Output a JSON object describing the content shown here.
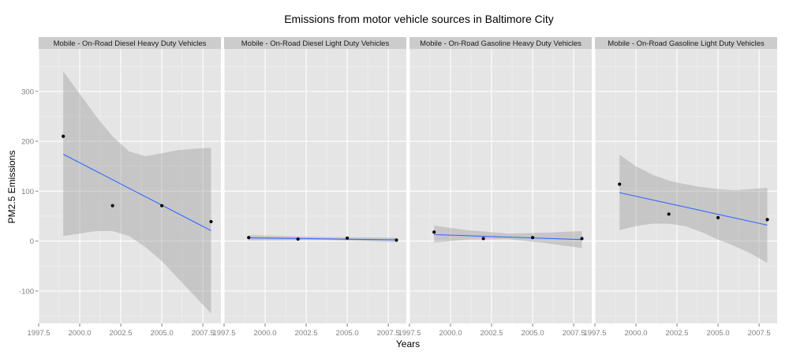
{
  "chart_data": {
    "type": "scatter",
    "title": "Emissions from motor vehicle sources in Baltimore City",
    "xlabel": "Years",
    "ylabel": "PM2.5 Emissions",
    "xlim": [
      1997.5,
      2008.6
    ],
    "ylim": [
      -165,
      385
    ],
    "x_ticks": [
      1997.5,
      2000.0,
      2002.5,
      2005.0,
      2007.5
    ],
    "x_tick_labels": [
      "1997.5",
      "2000.0",
      "2002.5",
      "2005.0",
      "2007.5"
    ],
    "y_ticks": [
      -100,
      0,
      100,
      200,
      300
    ],
    "y_tick_labels": [
      "-100",
      "0",
      "100",
      "200",
      "300"
    ],
    "grid": true,
    "facets": [
      {
        "name": "Mobile - On-Road Diesel Heavy Duty Vehicles",
        "points": [
          {
            "x": 1999,
            "y": 210
          },
          {
            "x": 2002,
            "y": 71
          },
          {
            "x": 2005,
            "y": 71
          },
          {
            "x": 2008,
            "y": 39
          }
        ],
        "fit": {
          "x": [
            1999,
            2008
          ],
          "y": [
            174,
            21
          ]
        },
        "band": {
          "x": [
            1999,
            2000,
            2001,
            2002,
            2003,
            2004,
            2005,
            2006,
            2007,
            2008
          ],
          "upper": [
            340,
            295,
            250,
            210,
            180,
            170,
            176,
            182,
            185,
            187
          ],
          "lower": [
            10,
            15,
            20,
            20,
            10,
            -12,
            -40,
            -75,
            -110,
            -145
          ]
        }
      },
      {
        "name": "Mobile - On-Road Diesel Light Duty Vehicles",
        "points": [
          {
            "x": 1999,
            "y": 7
          },
          {
            "x": 2002,
            "y": 4
          },
          {
            "x": 2005,
            "y": 6
          },
          {
            "x": 2008,
            "y": 2
          }
        ],
        "fit": {
          "x": [
            1999,
            2008
          ],
          "y": [
            6.5,
            2.5
          ]
        },
        "band": {
          "x": [
            1999,
            2003.5,
            2008
          ],
          "upper": [
            12,
            8,
            7
          ],
          "lower": [
            1,
            2,
            -2
          ]
        }
      },
      {
        "name": "Mobile - On-Road Gasoline Heavy Duty Vehicles",
        "points": [
          {
            "x": 1999,
            "y": 18
          },
          {
            "x": 2002,
            "y": 5
          },
          {
            "x": 2005,
            "y": 7
          },
          {
            "x": 2008,
            "y": 5
          }
        ],
        "fit": {
          "x": [
            1999,
            2008
          ],
          "y": [
            13,
            3
          ]
        },
        "band": {
          "x": [
            1999,
            2001,
            2003.5,
            2006,
            2008
          ],
          "upper": [
            31,
            22,
            15,
            17,
            20
          ],
          "lower": [
            -3,
            3,
            4,
            -5,
            -14
          ]
        }
      },
      {
        "name": "Mobile - On-Road Gasoline Light Duty Vehicles",
        "points": [
          {
            "x": 1999,
            "y": 114
          },
          {
            "x": 2002,
            "y": 54
          },
          {
            "x": 2005,
            "y": 47
          },
          {
            "x": 2008,
            "y": 43
          }
        ],
        "fit": {
          "x": [
            1999,
            2008
          ],
          "y": [
            97,
            32
          ]
        },
        "band": {
          "x": [
            1999,
            2000,
            2001,
            2002,
            2003,
            2004,
            2005,
            2006,
            2007,
            2008
          ],
          "upper": [
            173,
            150,
            133,
            121,
            114,
            108,
            104,
            102,
            104,
            107
          ],
          "lower": [
            22,
            30,
            35,
            35,
            30,
            18,
            3,
            -10,
            -25,
            -44
          ]
        }
      }
    ]
  },
  "colors": {
    "panel_bg": "#e5e5e5",
    "strip_bg": "#cccccc",
    "grid_major": "#ffffff",
    "grid_minor": "#f2f2f2",
    "fit_line": "#3366ff",
    "band_fill": "#999999",
    "point": "#000000",
    "tick_text": "#7f7f7f"
  }
}
